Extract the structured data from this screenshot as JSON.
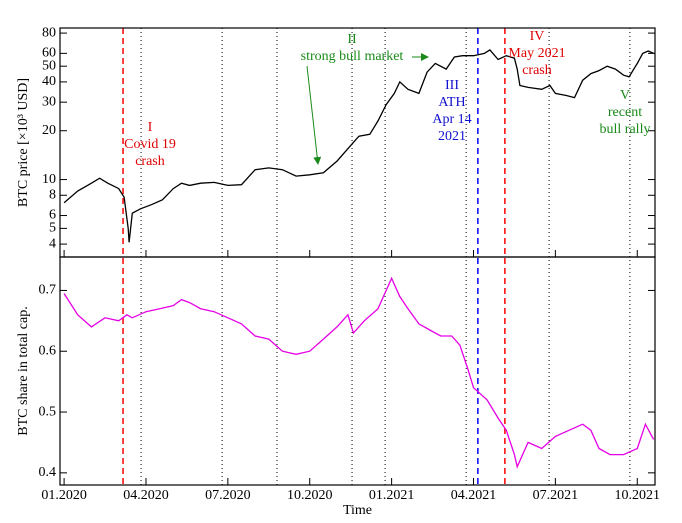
{
  "chart_data": [
    {
      "type": "line",
      "ylabel": "BTC price [×10³ USD]",
      "log_y": true,
      "xlim": [
        -0.15,
        21.65
      ],
      "ylim": [
        3.33,
        86
      ],
      "yticks": [
        4,
        5,
        6,
        8,
        10,
        20,
        30,
        40,
        50,
        60,
        80
      ],
      "x": [
        0,
        0.5,
        1,
        1.3,
        1.6,
        2.0,
        2.2,
        2.35,
        2.38,
        2.5,
        2.8,
        3.2,
        3.6,
        4.0,
        4.3,
        4.6,
        5,
        5.5,
        6,
        6.5,
        7,
        7.5,
        8,
        8.5,
        9,
        9.5,
        10,
        10.4,
        10.8,
        11.2,
        11.5,
        11.8,
        12.1,
        12.3,
        12.6,
        13,
        13.3,
        13.6,
        14,
        14.3,
        14.6,
        15,
        15.4,
        15.6,
        15.9,
        16.2,
        16.5,
        16.6,
        16.7,
        17,
        17.5,
        17.8,
        18,
        18.4,
        18.7,
        19,
        19.3,
        19.6,
        19.9,
        20.2,
        20.5,
        20.7,
        21,
        21.2,
        21.4,
        21.6
      ],
      "series": [
        {
          "name": "BTC price",
          "color": "#000000",
          "values": [
            7.2,
            8.5,
            9.5,
            10.2,
            9.5,
            8.8,
            7.8,
            5.0,
            4.1,
            6.2,
            6.6,
            7.0,
            7.5,
            8.8,
            9.5,
            9.2,
            9.5,
            9.6,
            9.2,
            9.3,
            11.5,
            11.8,
            11.5,
            10.5,
            10.7,
            11.0,
            13.0,
            15.5,
            18.5,
            19.0,
            23,
            29,
            34,
            40,
            36,
            34,
            46,
            52,
            48,
            57,
            58,
            58,
            60,
            63,
            55,
            58,
            56,
            48,
            38,
            37,
            36,
            38,
            34,
            33,
            32,
            41,
            45,
            47,
            50,
            48,
            44,
            43,
            52,
            60,
            62,
            60
          ]
        }
      ],
      "reference_lines": [
        {
          "x": 2.16,
          "color": "#ff0000",
          "style": "dashed"
        },
        {
          "x": 16.15,
          "color": "#ff0000",
          "style": "dashed"
        },
        {
          "x": 15.16,
          "color": "#0000ff",
          "style": "dashed"
        },
        {
          "x": 2.82,
          "color": "#000000",
          "style": "dotted"
        },
        {
          "x": 5.79,
          "color": "#000000",
          "style": "dotted"
        },
        {
          "x": 7.8,
          "color": "#000000",
          "style": "dotted"
        },
        {
          "x": 10.55,
          "color": "#000000",
          "style": "dotted"
        },
        {
          "x": 11.76,
          "color": "#000000",
          "style": "dotted"
        },
        {
          "x": 14.73,
          "color": "#000000",
          "style": "dotted"
        },
        {
          "x": 17.77,
          "color": "#000000",
          "style": "dotted"
        },
        {
          "x": 20.73,
          "color": "#000000",
          "style": "dotted"
        }
      ],
      "annotations": [
        {
          "label": "I",
          "lines": [
            "Covid 19",
            "crash"
          ],
          "color": "#e00000"
        },
        {
          "label": "II",
          "lines": [
            "strong bull market"
          ],
          "color": "#1a8a1a"
        },
        {
          "label": "III",
          "lines": [
            "ATH",
            "Apr 14",
            "2021"
          ],
          "color": "#1010d0"
        },
        {
          "label": "IV",
          "lines": [
            "May 2021",
            "crash"
          ],
          "color": "#e00000"
        },
        {
          "label": "V",
          "lines": [
            "recent",
            "bull rally"
          ],
          "color": "#1a8a1a"
        }
      ]
    },
    {
      "type": "line",
      "ylabel": "BTC share in total cap.",
      "xlabel": "Time",
      "xlim": [
        -0.15,
        21.65
      ],
      "ylim": [
        0.38,
        0.755
      ],
      "xticks": [
        {
          "value": 0,
          "label": "01.2020"
        },
        {
          "value": 3,
          "label": "04.2020"
        },
        {
          "value": 6,
          "label": "07.2020"
        },
        {
          "value": 9,
          "label": "10.2020"
        },
        {
          "value": 12,
          "label": "01.2021"
        },
        {
          "value": 15,
          "label": "04.2021"
        },
        {
          "value": 18,
          "label": "07.2021"
        },
        {
          "value": 21,
          "label": "10.2021"
        }
      ],
      "yticks": [
        0.4,
        0.5,
        0.6,
        0.7
      ],
      "x": [
        0,
        0.5,
        1,
        1.5,
        2,
        2.3,
        2.5,
        3,
        3.5,
        4,
        4.3,
        4.6,
        5,
        5.5,
        6,
        6.5,
        7,
        7.5,
        8,
        8.5,
        9,
        9.5,
        10,
        10.4,
        10.6,
        11,
        11.5,
        11.8,
        12.0,
        12.3,
        12.6,
        13,
        13.4,
        13.8,
        14.2,
        14.5,
        14.8,
        15,
        15.5,
        15.9,
        16.2,
        16.5,
        16.6,
        16.8,
        17,
        17.5,
        18,
        18.5,
        19,
        19.3,
        19.6,
        20,
        20.5,
        21,
        21.3,
        21.6
      ],
      "series": [
        {
          "name": "BTC share",
          "color": "#e600e6",
          "values": [
            0.695,
            0.66,
            0.64,
            0.655,
            0.65,
            0.66,
            0.655,
            0.665,
            0.67,
            0.675,
            0.685,
            0.68,
            0.67,
            0.665,
            0.655,
            0.645,
            0.625,
            0.62,
            0.6,
            0.595,
            0.6,
            0.62,
            0.64,
            0.66,
            0.63,
            0.65,
            0.67,
            0.7,
            0.72,
            0.69,
            0.67,
            0.645,
            0.635,
            0.625,
            0.625,
            0.61,
            0.57,
            0.54,
            0.52,
            0.49,
            0.47,
            0.43,
            0.41,
            0.43,
            0.45,
            0.44,
            0.46,
            0.47,
            0.48,
            0.47,
            0.44,
            0.43,
            0.43,
            0.44,
            0.48,
            0.455
          ]
        }
      ]
    }
  ]
}
